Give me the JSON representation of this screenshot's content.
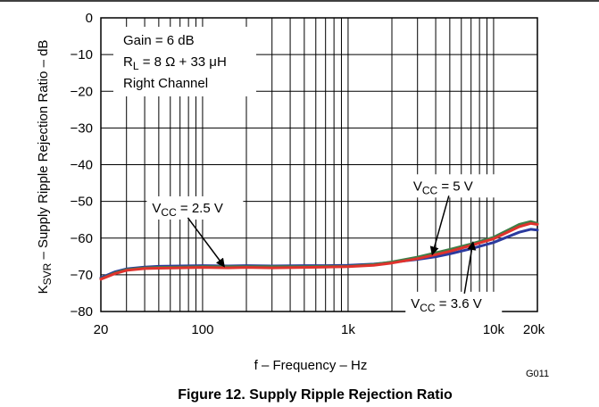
{
  "chart_data": {
    "type": "line",
    "title": "",
    "caption": "Figure 12. Supply Ripple Rejection Ratio",
    "figure_id": "G011",
    "xlabel": "f – Frequency – Hz",
    "ylabel": {
      "prefix": "K",
      "sub": "SVR",
      "rest": " – Supply Ripple Rejection Ratio – dB"
    },
    "xscale": "log",
    "xlim": [
      20,
      20000
    ],
    "ylim": [
      -80,
      0
    ],
    "grid": true,
    "x_ticks": [
      {
        "value": 20,
        "label": "20"
      },
      {
        "value": 100,
        "label": "100"
      },
      {
        "value": 1000,
        "label": "1k"
      },
      {
        "value": 10000,
        "label": "10k"
      },
      {
        "value": 20000,
        "label": "20k"
      }
    ],
    "y_ticks": [
      {
        "value": 0,
        "label": "0"
      },
      {
        "value": -10,
        "label": "−10"
      },
      {
        "value": -20,
        "label": "−20"
      },
      {
        "value": -30,
        "label": "−30"
      },
      {
        "value": -40,
        "label": "−40"
      },
      {
        "value": -50,
        "label": "−50"
      },
      {
        "value": -60,
        "label": "−60"
      },
      {
        "value": -70,
        "label": "−70"
      },
      {
        "value": -80,
        "label": "−80"
      }
    ],
    "conditions": [
      "Gain = 6 dB",
      {
        "prefix": "R",
        "sub": "L",
        "rest": " = 8 Ω + 33 μH"
      },
      "Right Channel"
    ],
    "series": [
      {
        "label": {
          "prefix": "V",
          "sub": "CC",
          "rest": " = 2.5 V"
        },
        "color": "#2b3a9e",
        "x": [
          20,
          25,
          30,
          40,
          50,
          70,
          100,
          150,
          200,
          300,
          500,
          700,
          1000,
          1500,
          2000,
          3000,
          4000,
          5000,
          7000,
          10000,
          15000,
          18000,
          20000
        ],
        "y": [
          -70.8,
          -69.2,
          -68.4,
          -67.9,
          -67.7,
          -67.6,
          -67.5,
          -67.6,
          -67.5,
          -67.6,
          -67.5,
          -67.5,
          -67.4,
          -67.1,
          -66.6,
          -65.8,
          -65.1,
          -64.3,
          -62.9,
          -61.2,
          -58.4,
          -57.6,
          -57.8
        ]
      },
      {
        "label": {
          "prefix": "V",
          "sub": "CC",
          "rest": " = 3.6 V"
        },
        "color": "#3f7f47",
        "x": [
          20,
          25,
          30,
          40,
          50,
          70,
          100,
          150,
          200,
          300,
          500,
          700,
          1000,
          1500,
          2000,
          3000,
          4000,
          5000,
          7000,
          10000,
          15000,
          18000,
          20000
        ],
        "y": [
          -71.1,
          -69.5,
          -68.6,
          -68.1,
          -68.0,
          -67.9,
          -67.8,
          -67.8,
          -67.8,
          -67.8,
          -67.8,
          -67.7,
          -67.7,
          -67.2,
          -66.5,
          -65.2,
          -64.0,
          -63.1,
          -61.6,
          -59.8,
          -56.3,
          -55.5,
          -56.0
        ]
      },
      {
        "label": {
          "prefix": "V",
          "sub": "CC",
          "rest": " = 5 V"
        },
        "color": "#e0322d",
        "x": [
          20,
          25,
          30,
          40,
          50,
          70,
          100,
          150,
          200,
          300,
          500,
          700,
          1000,
          1500,
          2000,
          3000,
          4000,
          5000,
          7000,
          10000,
          15000,
          18000,
          20000
        ],
        "y": [
          -71.2,
          -69.7,
          -68.8,
          -68.3,
          -68.2,
          -68.1,
          -68.0,
          -68.1,
          -68.0,
          -68.1,
          -68.0,
          -67.9,
          -67.8,
          -67.4,
          -66.8,
          -65.6,
          -64.5,
          -63.6,
          -62.0,
          -60.2,
          -56.9,
          -56.0,
          -56.3
        ]
      }
    ],
    "annotations": [
      {
        "series": 0,
        "text_x": 45,
        "text_y": -53,
        "arrow_x": 140,
        "arrow_y": -67.6
      },
      {
        "series": 2,
        "text_x": 2800,
        "text_y": -47,
        "arrow_x": 3800,
        "arrow_y": -64.3
      },
      {
        "series": 1,
        "text_x": 2700,
        "text_y": -79,
        "arrow_x": 7200,
        "arrow_y": -61.3
      }
    ]
  }
}
